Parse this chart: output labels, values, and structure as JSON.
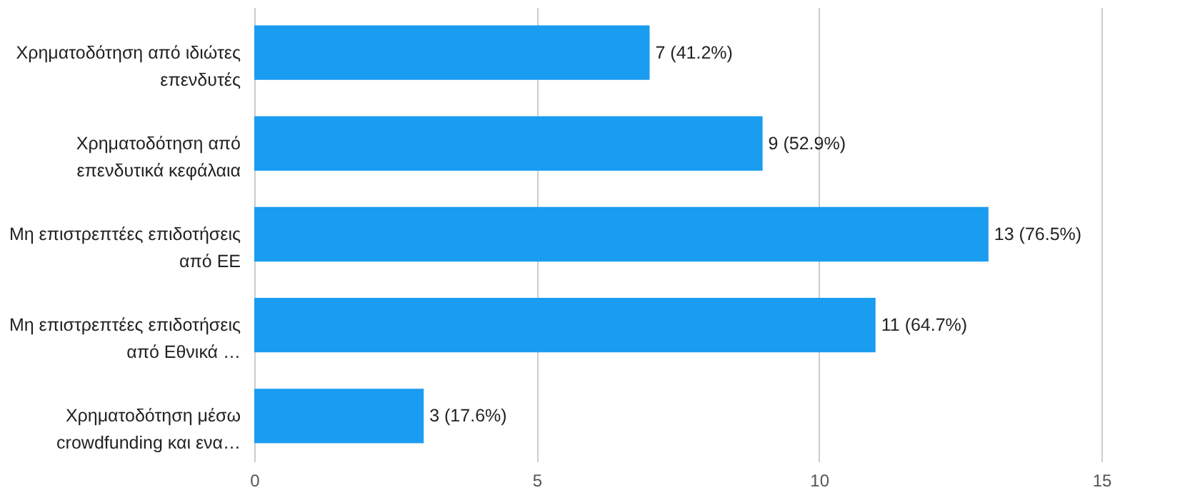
{
  "chart_data": {
    "type": "bar",
    "orientation": "horizontal",
    "categories": [
      "Χρηματοδότηση από ιδιώτες\nεπενδυτές",
      "Χρηματοδότηση από\nεπενδυτικά κεφάλαια",
      "Μη επιστρεπτέες επιδοτήσεις\nαπό ΕΕ",
      "Μη επιστρεπτέες επιδοτήσεις\nαπό Εθνικά …",
      "Χρηματοδότηση μέσω\ncrowdfunding και ενα…"
    ],
    "values": [
      7,
      9,
      13,
      11,
      3
    ],
    "value_labels": [
      "7 (41.2%)",
      "9 (52.9%)",
      "13 (76.5%)",
      "11 (64.7%)",
      "3 (17.6%)"
    ],
    "color": "#1a9cf0",
    "xlim": [
      0,
      15
    ],
    "xticks": [
      0,
      5,
      10,
      15
    ],
    "grid": "x"
  }
}
